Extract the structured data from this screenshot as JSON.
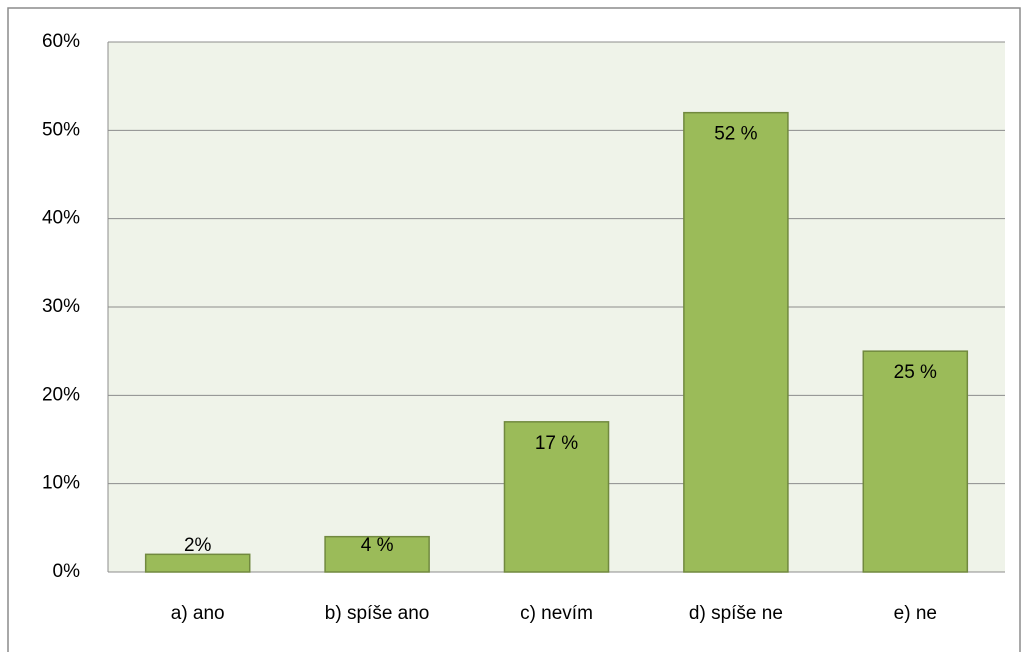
{
  "chart_data": {
    "type": "bar",
    "categories": [
      "a) ano",
      "b) spíše ano",
      "c) nevím",
      "d) spíše ne",
      "e) ne"
    ],
    "values": [
      2,
      4,
      17,
      52,
      25
    ],
    "value_labels": [
      "2%",
      "4 %",
      "17 %",
      "52 %",
      "25 %"
    ],
    "color": "#9bbb59",
    "ylim": [
      0,
      60
    ],
    "yticks": [
      {
        "value": 0,
        "label": "0%"
      },
      {
        "value": 10,
        "label": "10%"
      },
      {
        "value": 20,
        "label": "20%"
      },
      {
        "value": 30,
        "label": "30%"
      },
      {
        "value": 40,
        "label": "40%"
      },
      {
        "value": 50,
        "label": "50%"
      },
      {
        "value": 60,
        "label": "60%"
      }
    ],
    "grid": true
  }
}
